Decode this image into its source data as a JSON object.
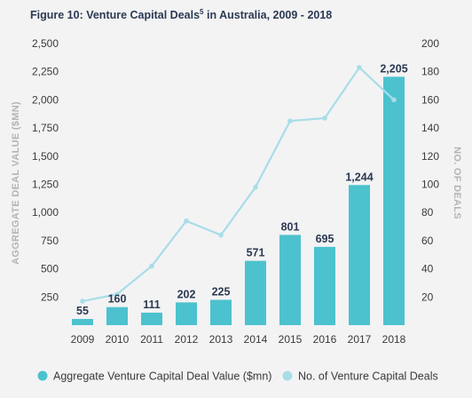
{
  "chart_data": {
    "type": "bar",
    "title": "Figure 10: Venture Capital Deals",
    "title_sup": "5",
    "title_rest": " in Australia, 2009 - 2018",
    "categories": [
      "2009",
      "2010",
      "2011",
      "2012",
      "2013",
      "2014",
      "2015",
      "2016",
      "2017",
      "2018"
    ],
    "series": [
      {
        "name": "Aggregate Venture Capital Deal Value ($mn)",
        "type": "bar",
        "axis": "left",
        "values": [
          55,
          160,
          111,
          202,
          225,
          571,
          801,
          695,
          1244,
          2205
        ],
        "labels": [
          "55",
          "160",
          "111",
          "202",
          "225",
          "571",
          "801",
          "695",
          "1,244",
          "2,205"
        ]
      },
      {
        "name": "No. of Venture Capital Deals",
        "type": "line",
        "axis": "right",
        "values": [
          17,
          22,
          42,
          74,
          64,
          98,
          145,
          147,
          183,
          160
        ]
      }
    ],
    "ylabel_left": "AGGREGATE DEAL VALUE ($MN)",
    "ylabel_right": "NO. OF DEALS",
    "ylim_left": [
      0,
      2500
    ],
    "ylim_right": [
      0,
      200
    ],
    "yticks_left": [
      "250",
      "500",
      "750",
      "1,000",
      "1,250",
      "1,500",
      "1,750",
      "2,000",
      "2,250",
      "2,500"
    ],
    "yticks_right": [
      "20",
      "40",
      "60",
      "80",
      "100",
      "120",
      "140",
      "160",
      "180",
      "200"
    ],
    "colors": {
      "bar": "#4cc2ce",
      "line": "#a8dde8",
      "label": "#2b3a52"
    },
    "legend_position": "bottom",
    "grid": false
  }
}
